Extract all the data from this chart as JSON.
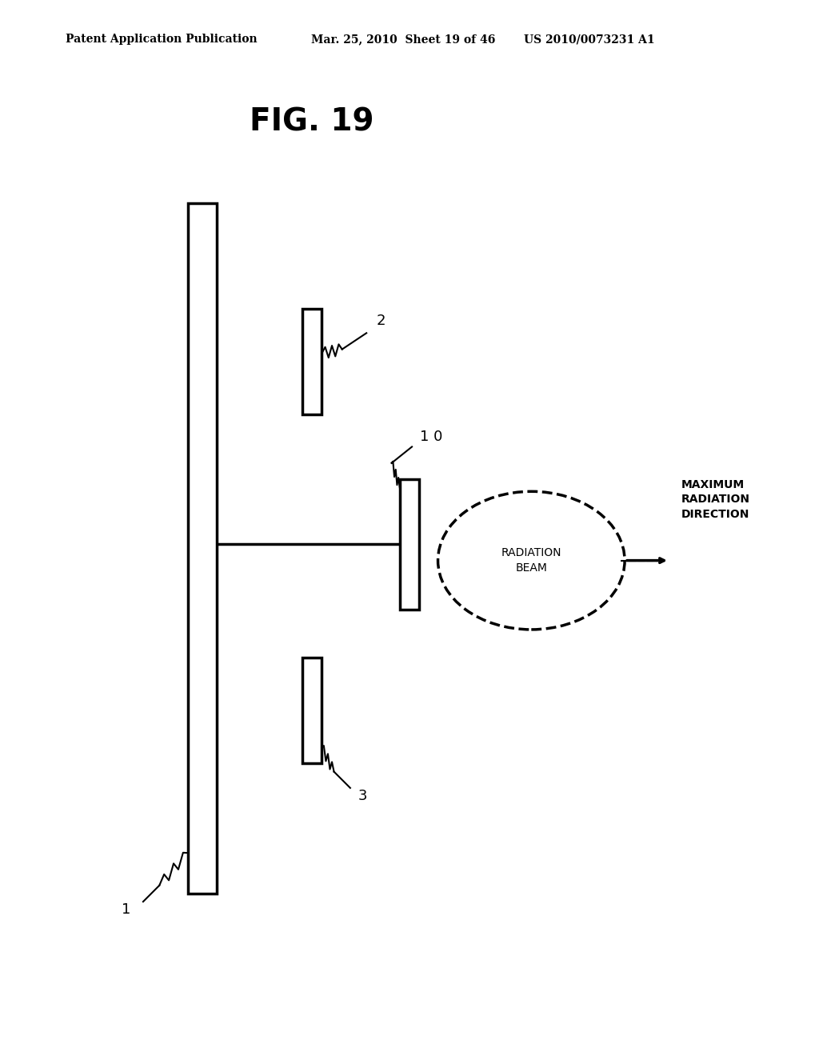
{
  "title": "FIG. 19",
  "header_left": "Patent Application Publication",
  "header_mid": "Mar. 25, 2010  Sheet 19 of 46",
  "header_right": "US 2010/0073231 A1",
  "bg_color": "#ffffff",
  "line_color": "#000000",
  "label_1": "1",
  "label_2": "2",
  "label_3": "3",
  "label_10": "1 0",
  "label_radiation_beam": "RADIATION\nBEAM",
  "label_max_radiation": "MAXIMUM\nRADIATION\nDIRECTION",
  "font_size_title": 28,
  "font_size_header": 10,
  "font_size_labels": 13
}
